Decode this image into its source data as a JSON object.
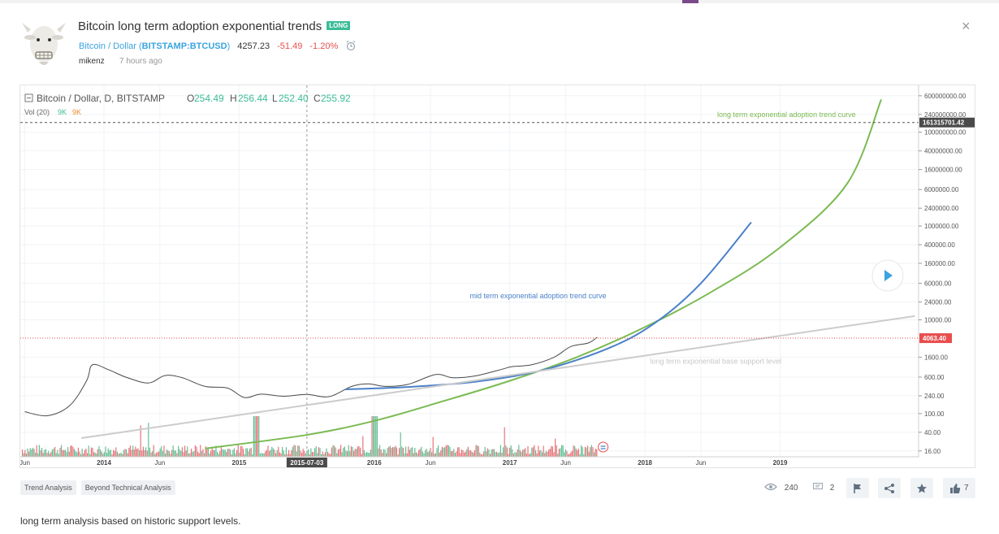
{
  "header": {
    "title": "Bitcoin long term adoption exponential trends",
    "badge": "LONG",
    "symbol": "Bitcoin / Dollar",
    "exchange": "BITSTAMP:BTCUSD",
    "price": "4257.23",
    "change": "-51.49",
    "change_pct": "-1.20%",
    "author": "mikenz",
    "age": "7 hours ago",
    "close_label": "×",
    "avatar_icon": "goat-avatar-icon",
    "alarm_icon": "alarm-clock-icon"
  },
  "chart_data": {
    "type": "line",
    "title": "",
    "legend": {
      "symbol": "Bitcoin / Dollar, D, BITSTAMP",
      "o_label": "O",
      "open": "254.49",
      "h_label": "H",
      "high": "256.44",
      "l_label": "L",
      "low": "252.40",
      "c_label": "C",
      "close": "255.92",
      "volume": "Vol (20)",
      "vol_a": "9K",
      "vol_b": "9K"
    },
    "yscale": "log",
    "y_ticks": [
      "600000000.00",
      "240000000.00",
      "100000000.00",
      "40000000.00",
      "16000000.00",
      "6000000.00",
      "2400000.00",
      "1000000.00",
      "400000.00",
      "160000.00",
      "60000.00",
      "24000.00",
      "10000.00",
      "1600.00",
      "600.00",
      "240.00",
      "100.00",
      "40.00",
      "16.00"
    ],
    "x_ticks": [
      "Jun",
      "2014",
      "Jun",
      "2015",
      "2016",
      "Jun",
      "2017",
      "Jun",
      "2018",
      "Jun",
      "2019"
    ],
    "crosshair_date": "2015-07-03",
    "price_markers": {
      "top": "161315701.42",
      "current": "4063.40"
    },
    "annotations": {
      "green": "long term exponential adoption trend curve",
      "blue": "mid term exponential adoption trend curve",
      "gray": "long term exponential base support level"
    },
    "series": [
      {
        "name": "",
        "color": "#4a4a4a",
        "points": [
          [
            "2013-06-01",
            110
          ],
          [
            "2013-08-01",
            90
          ],
          [
            "2013-10-01",
            150
          ],
          [
            "2013-11-15",
            500
          ],
          [
            "2013-12-01",
            1100
          ],
          [
            "2014-01-15",
            850
          ],
          [
            "2014-03-01",
            600
          ],
          [
            "2014-05-01",
            450
          ],
          [
            "2014-06-15",
            650
          ],
          [
            "2014-08-01",
            580
          ],
          [
            "2014-10-01",
            380
          ],
          [
            "2014-12-01",
            350
          ],
          [
            "2015-01-15",
            220
          ],
          [
            "2015-03-01",
            260
          ],
          [
            "2015-05-01",
            235
          ],
          [
            "2015-07-03",
            256
          ],
          [
            "2015-09-01",
            230
          ],
          [
            "2015-11-01",
            380
          ],
          [
            "2015-12-15",
            430
          ],
          [
            "2016-02-01",
            380
          ],
          [
            "2016-04-01",
            420
          ],
          [
            "2016-06-15",
            680
          ],
          [
            "2016-08-01",
            580
          ],
          [
            "2016-10-01",
            640
          ],
          [
            "2016-12-15",
            900
          ],
          [
            "2017-01-05",
            1000
          ],
          [
            "2017-03-01",
            1100
          ],
          [
            "2017-05-01",
            1600
          ],
          [
            "2017-06-15",
            2700
          ],
          [
            "2017-08-01",
            3200
          ],
          [
            "2017-08-25",
            4257
          ]
        ]
      },
      {
        "name": "",
        "color": "#7bba52",
        "points": [
          [
            "2014-10-01",
            18
          ],
          [
            "2015-07-01",
            35
          ],
          [
            "2016-01-01",
            70
          ],
          [
            "2016-07-01",
            180
          ],
          [
            "2017-01-01",
            500
          ],
          [
            "2017-07-01",
            1600
          ],
          [
            "2018-01-01",
            7000
          ],
          [
            "2018-07-01",
            40000
          ],
          [
            "2019-01-01",
            350000
          ],
          [
            "2019-07-01",
            8000000
          ],
          [
            "2019-10-01",
            500000000
          ]
        ]
      },
      {
        "name": "",
        "color": "#4a80c8",
        "points": [
          [
            "2015-10-15",
            330
          ],
          [
            "2016-04-01",
            370
          ],
          [
            "2016-10-01",
            480
          ],
          [
            "2017-04-01",
            850
          ],
          [
            "2017-10-01",
            2600
          ],
          [
            "2018-02-01",
            9000
          ],
          [
            "2018-06-01",
            60000
          ],
          [
            "2018-10-15",
            1200000
          ]
        ]
      },
      {
        "name": "",
        "color": "#cccccc",
        "points": [
          [
            "2013-11-01",
            30
          ],
          [
            "2019-12-31",
            12000
          ]
        ]
      }
    ],
    "volume_bars": "shown",
    "grid": true,
    "ylim": [
      12,
      1000000000
    ]
  },
  "footer": {
    "tags": [
      "Trend Analysis",
      "Beyond Technical Analysis"
    ],
    "views": "240",
    "comments": "2",
    "likes": "7",
    "description": "long term analysis based on historic support levels."
  },
  "colors": {
    "accent_green": "#3cbc98",
    "link_blue": "#3ba3e0",
    "negative": "#e84e4e",
    "curve_green": "#7bba52",
    "curve_blue": "#4a80c8",
    "support_gray": "#cccccc"
  }
}
